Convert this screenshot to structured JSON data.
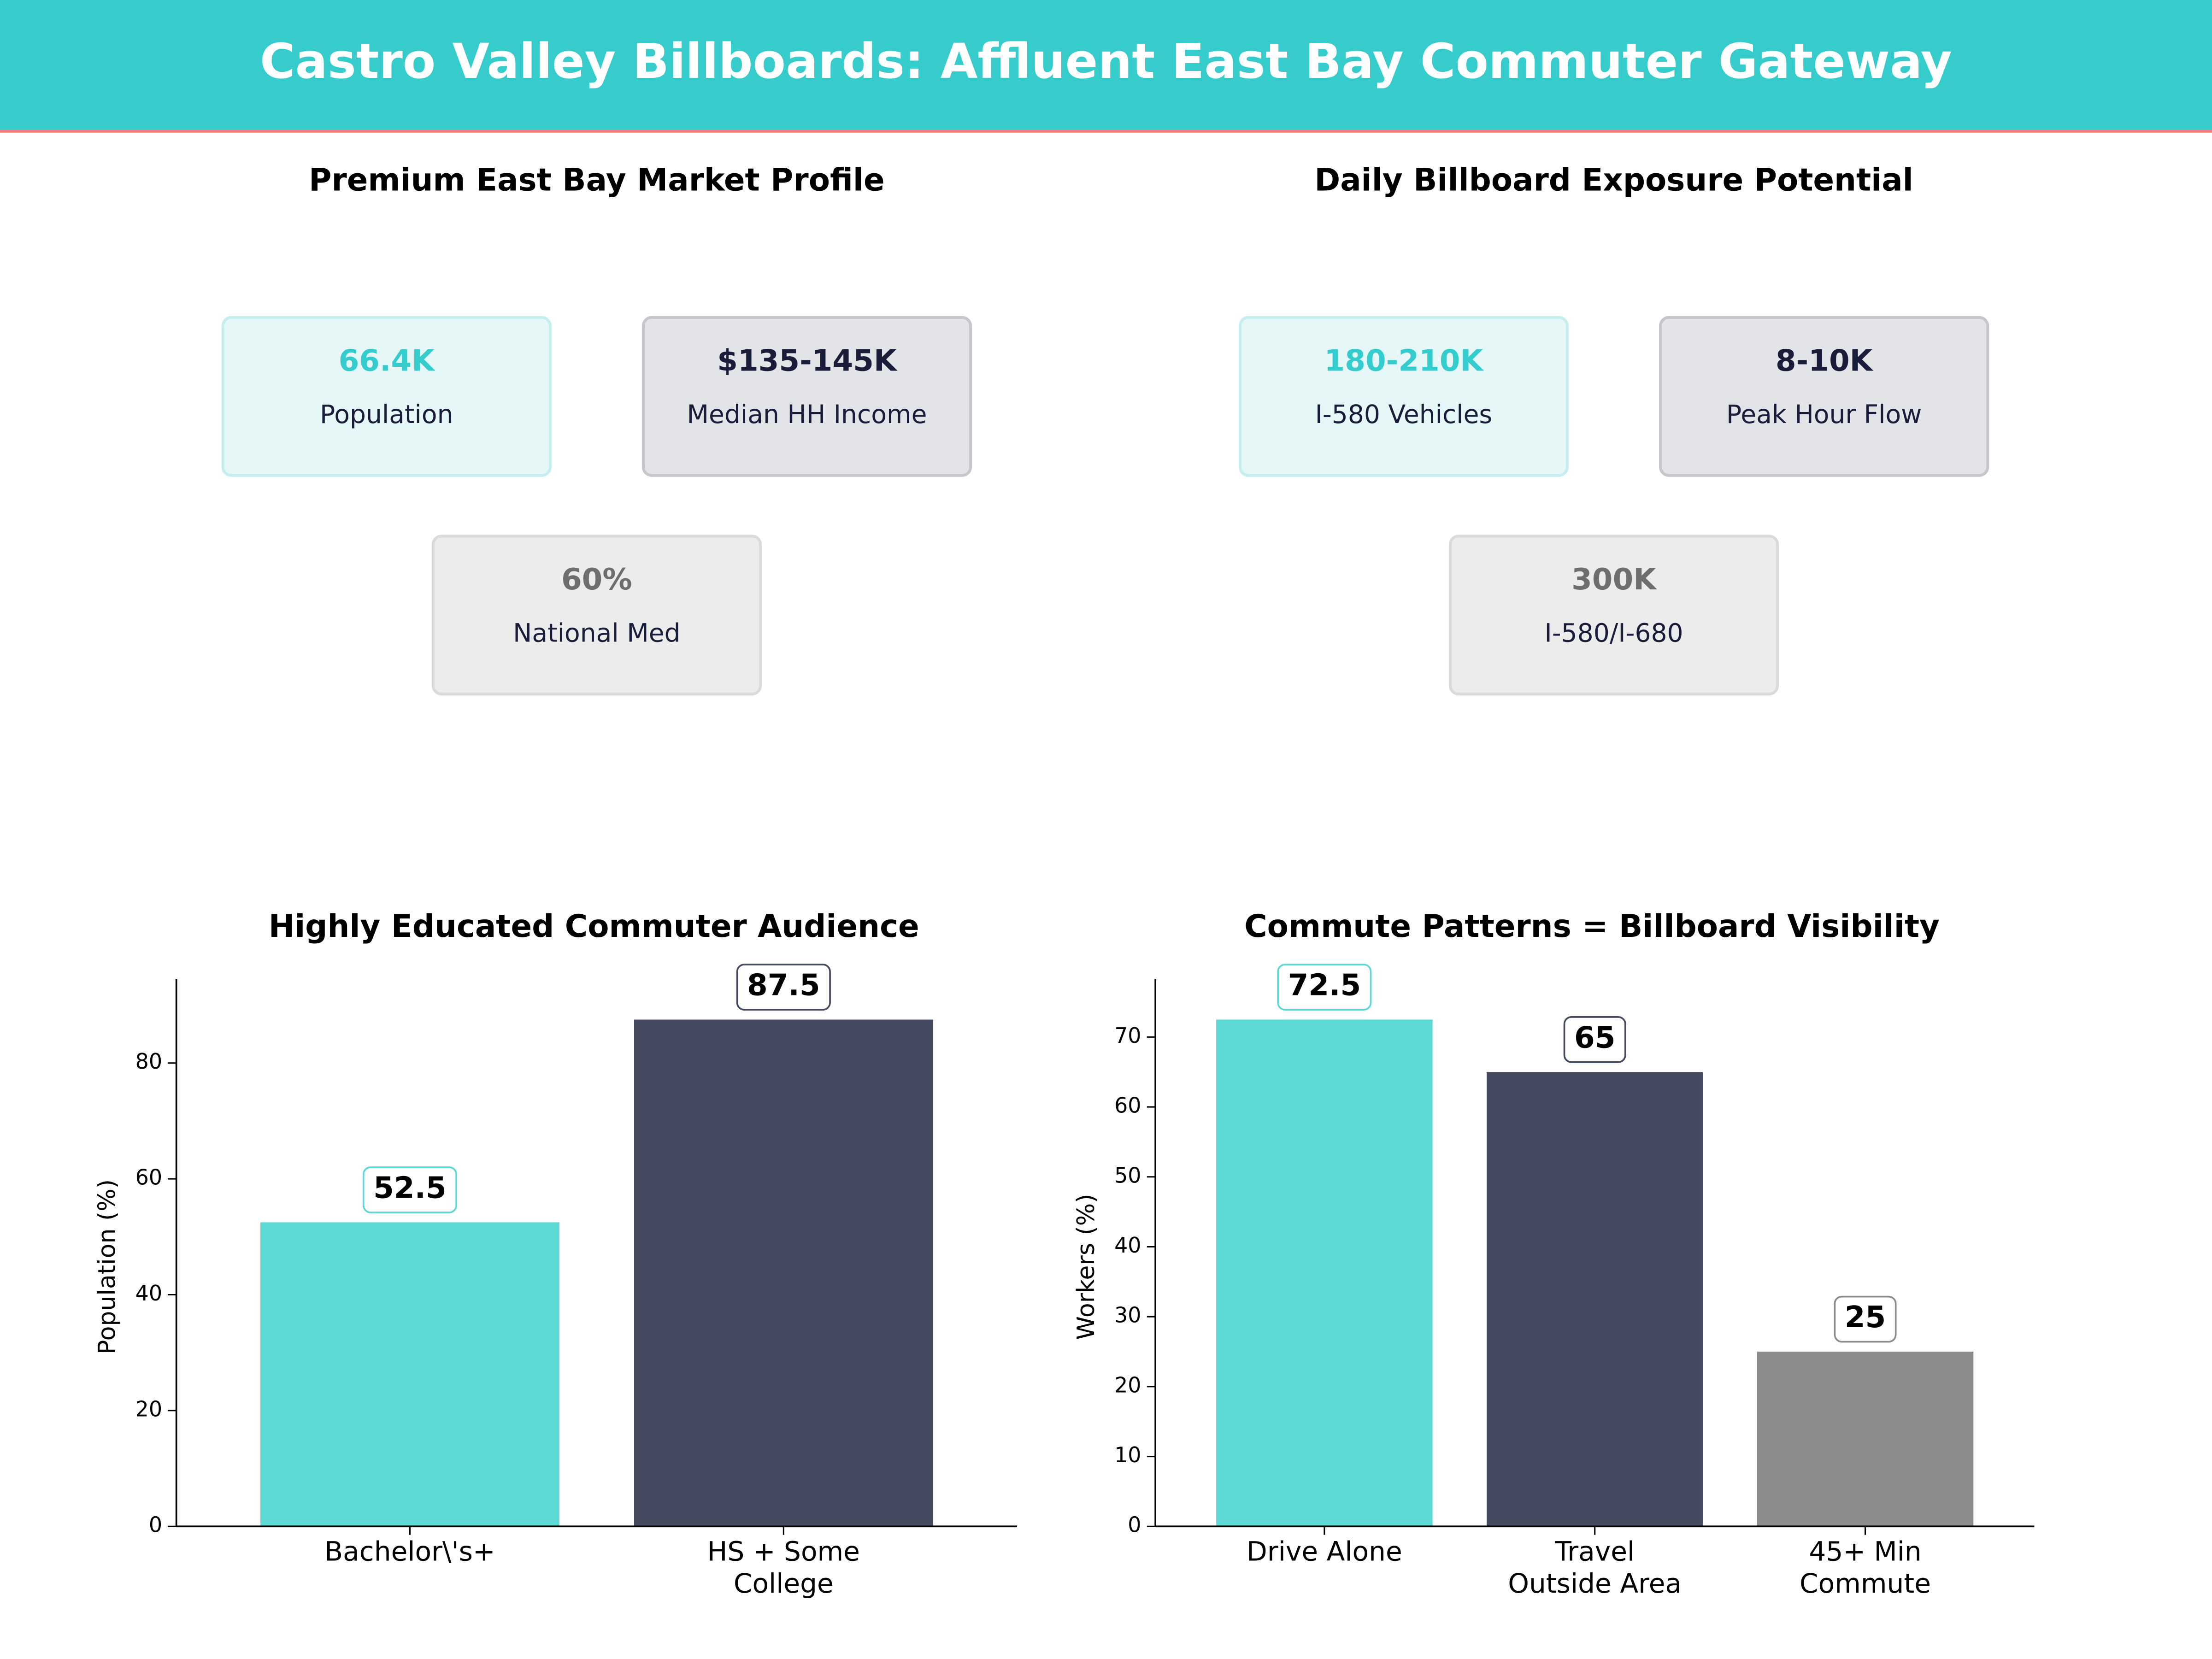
{
  "header": {
    "title": "Castro Valley Billboards: Affluent East Bay Commuter Gateway"
  },
  "kpi_panels": [
    {
      "title": "Premium East Bay Market Profile",
      "cards": [
        {
          "value": "66.4K",
          "label": "Population"
        },
        {
          "value": "$135-145K",
          "label": "Median HH Income"
        },
        {
          "value": "60%",
          "label": "National Med"
        }
      ]
    },
    {
      "title": "Daily Billboard Exposure Potential",
      "cards": [
        {
          "value": "180-210K",
          "label": "I-580 Vehicles"
        },
        {
          "value": "8-10K",
          "label": "Peak Hour Flow"
        },
        {
          "value": "300K",
          "label": "I-580/I-680"
        }
      ]
    }
  ],
  "chart_data": [
    {
      "type": "bar",
      "title": "Highly Educated Commuter Audience",
      "y_label": "Population (%)",
      "categories": [
        "Bachelor\\'s+",
        "HS + Some\nCollege"
      ],
      "values": [
        52.5,
        87.5
      ],
      "colors": [
        "#5dd8d5",
        "#464a60"
      ],
      "ylim": [
        0,
        94.5
      ],
      "yticks": [
        0,
        20,
        40,
        60,
        80
      ]
    },
    {
      "type": "bar",
      "title": "Commute Patterns = Billboard Visibility",
      "y_label": "Workers (%)",
      "categories": [
        "Drive Alone",
        "Travel\nOutside Area",
        "45+ Min\nCommute"
      ],
      "values": [
        72.5,
        65,
        25
      ],
      "colors": [
        "#5dd8d5",
        "#464a60",
        "#8c8c8c"
      ],
      "ylim": [
        0,
        78.3
      ],
      "yticks": [
        0,
        10,
        20,
        30,
        40,
        50,
        60,
        70
      ]
    }
  ]
}
